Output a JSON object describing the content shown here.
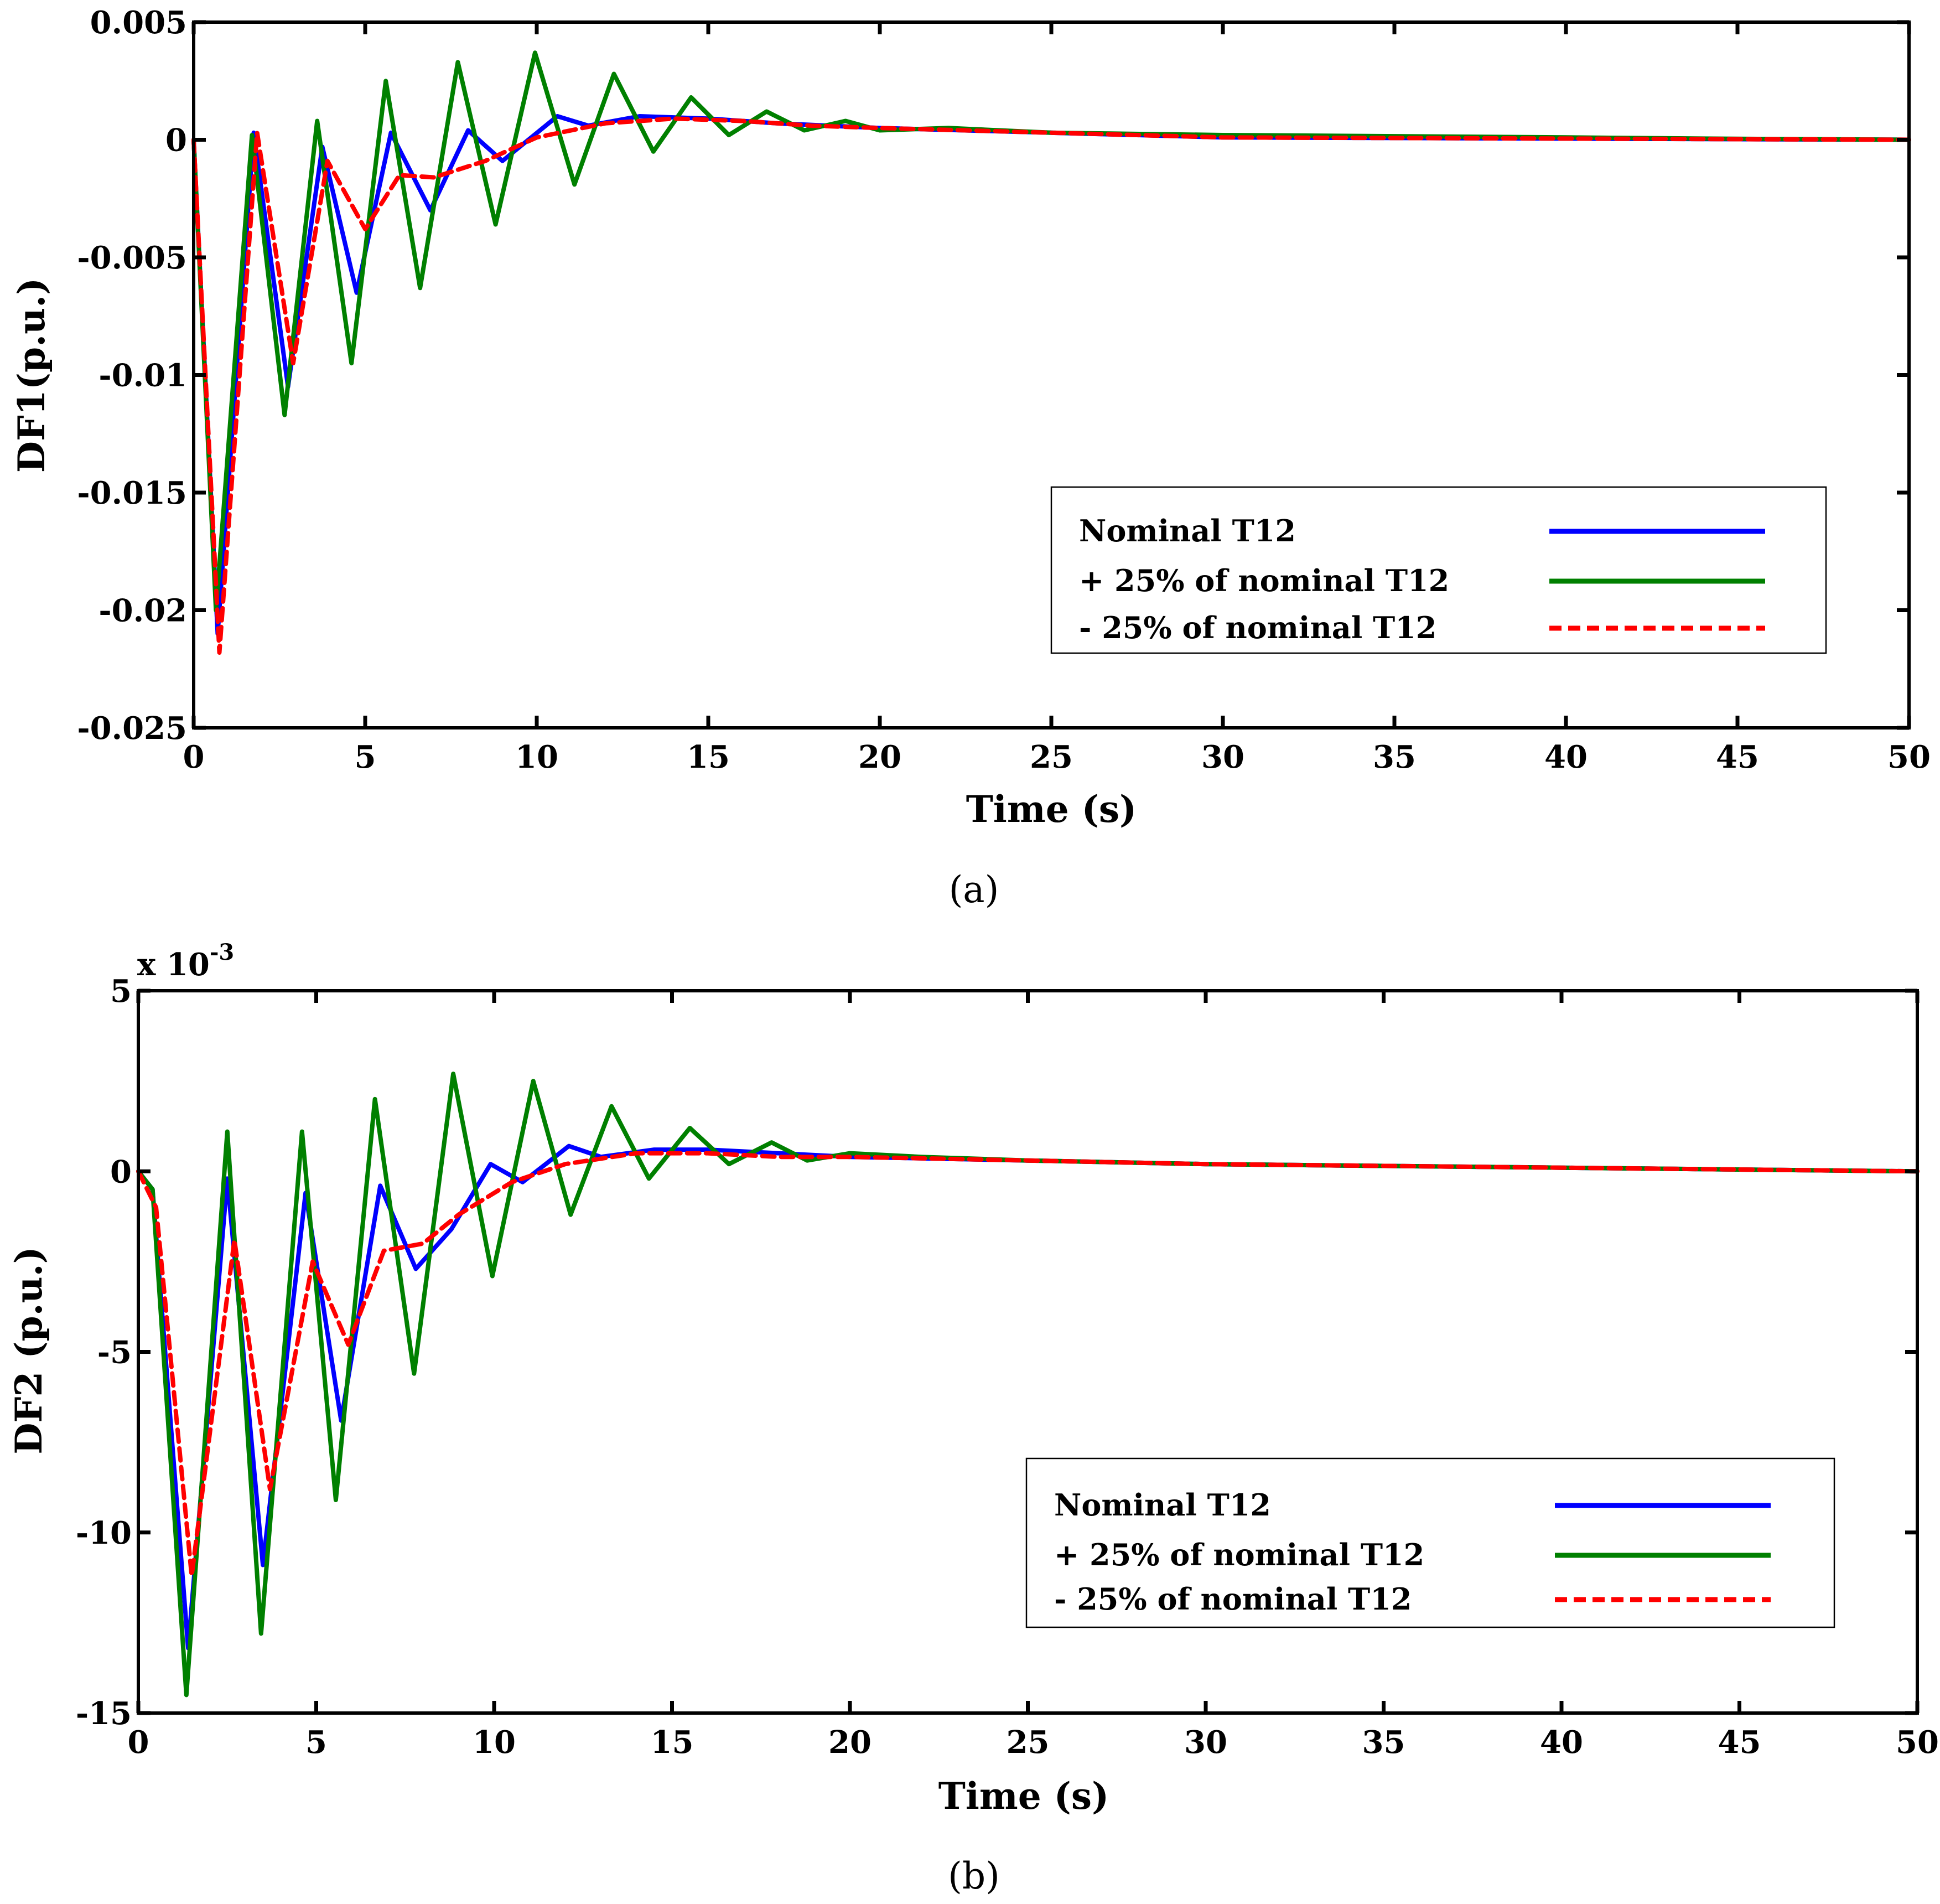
{
  "chart_data": [
    {
      "type": "line",
      "caption": "(a)",
      "xlabel": "Time (s)",
      "ylabel": "DF1(p.u.)",
      "exponent_label": "",
      "xlim": [
        0,
        50
      ],
      "ylim": [
        -0.025,
        0.005
      ],
      "xticks": [
        0,
        5,
        10,
        15,
        20,
        25,
        30,
        35,
        40,
        45,
        50
      ],
      "xtick_labels": [
        "0",
        "5",
        "10",
        "15",
        "20",
        "25",
        "30",
        "35",
        "40",
        "45",
        "50"
      ],
      "yticks": [
        0.005,
        0,
        -0.005,
        -0.01,
        -0.015,
        -0.02,
        -0.025
      ],
      "ytick_labels": [
        "0.005",
        "0",
        "-0.005",
        "-0.01",
        "-0.015",
        "-0.02",
        "-0.025"
      ],
      "legend": {
        "position": "right-middle",
        "entries": [
          {
            "label": "Nominal T12",
            "color": "#0000ff",
            "dash": "solid"
          },
          {
            "label": "+ 25% of nominal T12",
            "color": "#008000",
            "dash": "solid"
          },
          {
            "label": " - 25% of nominal T12",
            "color": "#ff0000",
            "dash": "dashed"
          }
        ]
      },
      "series": [
        {
          "name": "Nominal T12",
          "color": "#0000ff",
          "dash": "solid",
          "points": [
            [
              0,
              0
            ],
            [
              0.7,
              -0.021
            ],
            [
              1.75,
              0.0003
            ],
            [
              2.75,
              -0.0105
            ],
            [
              3.75,
              -0.0003
            ],
            [
              4.75,
              -0.0065
            ],
            [
              5.75,
              0.0003
            ],
            [
              6.9,
              -0.003
            ],
            [
              8.0,
              0.0004
            ],
            [
              9.0,
              -0.0009
            ],
            [
              10.6,
              0.001
            ],
            [
              11.5,
              0.0006
            ],
            [
              13,
              0.001
            ],
            [
              15,
              0.0009
            ],
            [
              17,
              0.0007
            ],
            [
              20,
              0.0005
            ],
            [
              25,
              0.0003
            ],
            [
              30,
              0.0001
            ],
            [
              40,
              5e-05
            ],
            [
              50,
              0
            ]
          ]
        },
        {
          "name": "+ 25% of nominal T12",
          "color": "#008000",
          "dash": "solid",
          "points": [
            [
              0,
              0
            ],
            [
              0.65,
              -0.02
            ],
            [
              1.7,
              0.0002
            ],
            [
              2.65,
              -0.0117
            ],
            [
              3.6,
              0.0008
            ],
            [
              4.6,
              -0.0095
            ],
            [
              5.6,
              0.0025
            ],
            [
              6.6,
              -0.0063
            ],
            [
              7.7,
              0.0033
            ],
            [
              8.8,
              -0.0036
            ],
            [
              9.95,
              0.0037
            ],
            [
              11.1,
              -0.0019
            ],
            [
              12.25,
              0.0028
            ],
            [
              13.4,
              -0.0005
            ],
            [
              14.5,
              0.0018
            ],
            [
              15.6,
              0.0002
            ],
            [
              16.7,
              0.0012
            ],
            [
              17.8,
              0.0004
            ],
            [
              19,
              0.0008
            ],
            [
              20,
              0.0004
            ],
            [
              22,
              0.0005
            ],
            [
              25,
              0.0003
            ],
            [
              30,
              0.0002
            ],
            [
              40,
              0.0001
            ],
            [
              44,
              5e-05
            ],
            [
              50,
              0
            ]
          ]
        },
        {
          "name": " - 25% of nominal T12",
          "color": "#ff0000",
          "dash": "dashed",
          "points": [
            [
              0,
              0
            ],
            [
              0.75,
              -0.0218
            ],
            [
              1.85,
              0.0003
            ],
            [
              2.9,
              -0.0095
            ],
            [
              3.9,
              -0.0009
            ],
            [
              5.0,
              -0.0038
            ],
            [
              6.0,
              -0.0015
            ],
            [
              7.0,
              -0.0016
            ],
            [
              8.5,
              -0.0009
            ],
            [
              10,
              0.0001
            ],
            [
              12,
              0.0007
            ],
            [
              14,
              0.0009
            ],
            [
              16,
              0.0008
            ],
            [
              18,
              0.0006
            ],
            [
              20,
              0.0005
            ],
            [
              25,
              0.0003
            ],
            [
              30,
              0.0001
            ],
            [
              40,
              5e-05
            ],
            [
              50,
              0
            ]
          ]
        }
      ]
    },
    {
      "type": "line",
      "caption": "(b)",
      "xlabel": "Time (s)",
      "ylabel": "DF2 (p.u.)",
      "exponent_label": "x 10",
      "exponent_power": "-3",
      "xlim": [
        0,
        50
      ],
      "ylim": [
        -15,
        5
      ],
      "xticks": [
        0,
        5,
        10,
        15,
        20,
        25,
        30,
        35,
        40,
        45,
        50
      ],
      "xtick_labels": [
        "0",
        "5",
        "10",
        "15",
        "20",
        "25",
        "30",
        "35",
        "40",
        "45",
        "50"
      ],
      "yticks": [
        5,
        0,
        -5,
        -10,
        -15
      ],
      "ytick_labels": [
        "5",
        "0",
        "-5",
        "-10",
        "-15"
      ],
      "legend": {
        "position": "right-middle",
        "entries": [
          {
            "label": "Nominal T12",
            "color": "#0000ff",
            "dash": "solid"
          },
          {
            "label": "+ 25% of nominal T12",
            "color": "#008000",
            "dash": "solid"
          },
          {
            "label": " - 25% of nominal T12",
            "color": "#ff0000",
            "dash": "dashed"
          }
        ]
      },
      "series": [
        {
          "name": "Nominal T12",
          "color": "#0000ff",
          "dash": "solid",
          "points": [
            [
              0,
              0
            ],
            [
              0.4,
              -0.5
            ],
            [
              1.4,
              -13.2
            ],
            [
              2.5,
              -0.2
            ],
            [
              3.5,
              -10.9
            ],
            [
              4.7,
              -0.6
            ],
            [
              5.7,
              -6.9
            ],
            [
              6.8,
              -0.4
            ],
            [
              7.8,
              -2.7
            ],
            [
              8.8,
              -1.6
            ],
            [
              9.9,
              0.2
            ],
            [
              10.8,
              -0.3
            ],
            [
              12.1,
              0.7
            ],
            [
              13.0,
              0.4
            ],
            [
              14.5,
              0.6
            ],
            [
              16,
              0.6
            ],
            [
              18,
              0.5
            ],
            [
              20,
              0.4
            ],
            [
              25,
              0.3
            ],
            [
              30,
              0.2
            ],
            [
              40,
              0.1
            ],
            [
              50,
              0
            ]
          ]
        },
        {
          "name": "+ 25% of nominal T12",
          "color": "#008000",
          "dash": "solid",
          "points": [
            [
              0,
              0
            ],
            [
              0.4,
              -0.5
            ],
            [
              1.35,
              -14.5
            ],
            [
              2.5,
              1.1
            ],
            [
              3.45,
              -12.8
            ],
            [
              4.6,
              1.1
            ],
            [
              5.55,
              -9.1
            ],
            [
              6.65,
              2.0
            ],
            [
              7.75,
              -5.6
            ],
            [
              8.85,
              2.7
            ],
            [
              9.95,
              -2.9
            ],
            [
              11.1,
              2.5
            ],
            [
              12.15,
              -1.2
            ],
            [
              13.3,
              1.8
            ],
            [
              14.35,
              -0.2
            ],
            [
              15.5,
              1.2
            ],
            [
              16.6,
              0.2
            ],
            [
              17.8,
              0.8
            ],
            [
              18.8,
              0.3
            ],
            [
              20,
              0.5
            ],
            [
              22,
              0.4
            ],
            [
              25,
              0.3
            ],
            [
              30,
              0.2
            ],
            [
              40,
              0.1
            ],
            [
              50,
              0
            ]
          ]
        },
        {
          "name": " - 25% of nominal T12",
          "color": "#ff0000",
          "dash": "dashed",
          "points": [
            [
              0,
              0
            ],
            [
              0.5,
              -1.0
            ],
            [
              1.5,
              -11.2
            ],
            [
              2.7,
              -1.9
            ],
            [
              3.7,
              -8.8
            ],
            [
              4.9,
              -2.5
            ],
            [
              5.9,
              -4.8
            ],
            [
              6.9,
              -2.2
            ],
            [
              8.0,
              -2.0
            ],
            [
              9.0,
              -1.2
            ],
            [
              10.5,
              -0.3
            ],
            [
              12,
              0.2
            ],
            [
              14,
              0.5
            ],
            [
              16,
              0.5
            ],
            [
              18,
              0.4
            ],
            [
              20,
              0.4
            ],
            [
              25,
              0.3
            ],
            [
              30,
              0.2
            ],
            [
              40,
              0.1
            ],
            [
              50,
              0
            ]
          ]
        }
      ]
    }
  ]
}
